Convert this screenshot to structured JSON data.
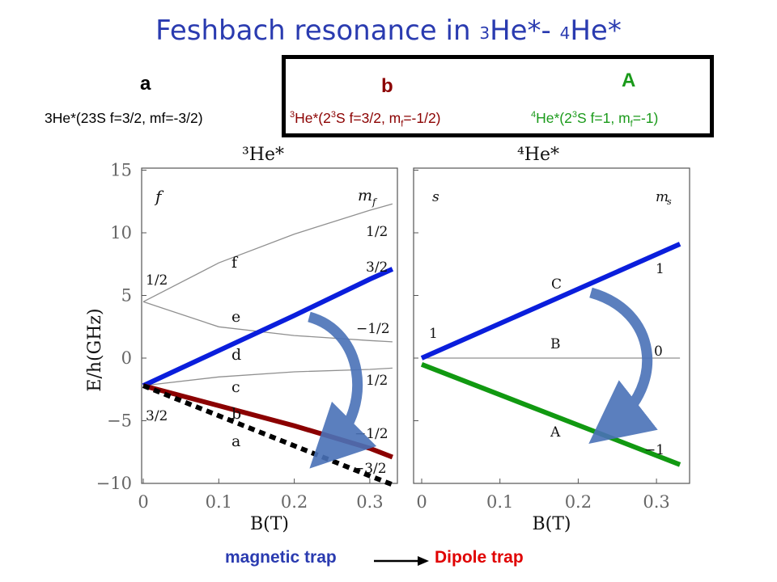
{
  "title": {
    "prefix": "Feshbach resonance in ",
    "sub1": "3",
    "mid": "He*- ",
    "sub2": "4",
    "suffix": "He*"
  },
  "states": {
    "a": {
      "letter": "a",
      "desc": "3He*(23S f=3/2, mf=-3/2)"
    },
    "b": {
      "letter": "b",
      "sup1": "3",
      "p1": "He*(2",
      "sup2": "3",
      "p2": "S f=3/2, m",
      "sub": "f",
      "p3": "=-1/2)"
    },
    "A": {
      "letter": "A",
      "sup1": "4",
      "p1": "He*(2",
      "sup2": "3",
      "p2": "S f=1, m",
      "sub": "f",
      "p3": "=-1)"
    }
  },
  "colors": {
    "title": "#2a3bb0",
    "b": "#8b0000",
    "A": "#1a9a1a",
    "blue": "#0a1edc",
    "darkred": "#8b0000",
    "green": "#119911",
    "arrow": "#4a72b8"
  },
  "footer": {
    "left": "magnetic trap",
    "right": "Dipole trap"
  },
  "chart_data": [
    {
      "type": "line",
      "title": "³He*",
      "xlabel": "B(T)",
      "ylabel": "E/h(GHz)",
      "xlim": [
        0,
        0.33
      ],
      "ylim": [
        -10,
        15
      ],
      "xticks": [
        "0",
        "0.1",
        "0.2",
        "0.3"
      ],
      "yticks": [
        "−10",
        "−5",
        "0",
        "5",
        "10",
        "15"
      ],
      "header_left": "f",
      "header_right": "m_f",
      "f_labels": [
        "1/2",
        "3/2"
      ],
      "level_letters": [
        "f",
        "e",
        "d",
        "c",
        "b",
        "a"
      ],
      "mf_labels": [
        "1/2",
        "3/2",
        "−1/2",
        "1/2",
        "−1/2",
        "−3/2"
      ],
      "series": [
        {
          "x": [
            0,
            0.1,
            0.2,
            0.3,
            0.33
          ],
          "y": [
            4.5,
            7.6,
            9.9,
            11.8,
            12.3
          ],
          "style": "gray"
        },
        {
          "x": [
            0,
            0.1,
            0.2,
            0.3,
            0.33
          ],
          "y": [
            4.5,
            2.5,
            1.8,
            1.4,
            1.3
          ],
          "style": "gray"
        },
        {
          "x": [
            0,
            0.1,
            0.2,
            0.3,
            0.33
          ],
          "y": [
            -2.2,
            -1.5,
            -1.1,
            -0.9,
            -0.8
          ],
          "style": "gray"
        },
        {
          "x": [
            0,
            0.1,
            0.2,
            0.3,
            0.33
          ],
          "y": [
            -2.2,
            0.6,
            3.4,
            6.3,
            7.1
          ],
          "style": "blue"
        },
        {
          "x": [
            0,
            0.1,
            0.2,
            0.3,
            0.33
          ],
          "y": [
            -2.2,
            -3.8,
            -5.4,
            -7.2,
            -7.9
          ],
          "style": "darkred"
        },
        {
          "x": [
            0,
            0.1,
            0.2,
            0.3,
            0.33
          ],
          "y": [
            -2.2,
            -4.6,
            -7.0,
            -9.4,
            -10.1
          ],
          "style": "dashed"
        }
      ]
    },
    {
      "type": "line",
      "title": "⁴He*",
      "xlabel": "B(T)",
      "ylabel": "",
      "xlim": [
        0,
        0.33
      ],
      "ylim": [
        -10,
        15
      ],
      "xticks": [
        "0",
        "0.1",
        "0.2",
        "0.3"
      ],
      "header_left": "s",
      "header_right": "m_s",
      "s_label": "1",
      "ms_labels": [
        "1",
        "0",
        "−1"
      ],
      "level_letters": [
        "C",
        "B",
        "A"
      ],
      "series": [
        {
          "x": [
            0,
            0.33
          ],
          "y": [
            0,
            0
          ],
          "style": "gray"
        },
        {
          "x": [
            0,
            0.33
          ],
          "y": [
            0,
            9.1
          ],
          "style": "blue"
        },
        {
          "x": [
            0,
            0.33
          ],
          "y": [
            -0.5,
            -8.5
          ],
          "style": "green"
        }
      ]
    }
  ]
}
